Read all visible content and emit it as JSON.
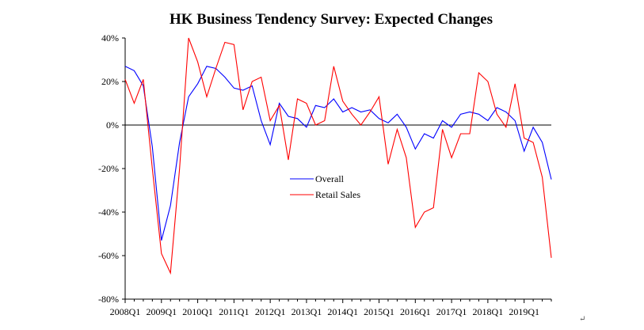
{
  "chart_data": {
    "type": "line",
    "title": "HK Business Tendency Survey: Expected Changes",
    "xlabel": "",
    "ylabel": "",
    "ylim": [
      -80,
      40
    ],
    "yticks": [
      "40%",
      "20%",
      "0%",
      "-20%",
      "-40%",
      "-60%",
      "-80%"
    ],
    "ytick_values": [
      40,
      20,
      0,
      -20,
      -40,
      -60,
      -80
    ],
    "xtick_labels": [
      "2008Q1",
      "2009Q1",
      "2010Q1",
      "2011Q1",
      "2012Q1",
      "2013Q1",
      "2014Q1",
      "2015Q1",
      "2016Q1",
      "2017Q1",
      "2018Q1",
      "2019Q1"
    ],
    "x": [
      "2008Q1",
      "2008Q2",
      "2008Q3",
      "2008Q4",
      "2009Q1",
      "2009Q2",
      "2009Q3",
      "2009Q4",
      "2010Q1",
      "2010Q2",
      "2010Q3",
      "2010Q4",
      "2011Q1",
      "2011Q2",
      "2011Q3",
      "2011Q4",
      "2012Q1",
      "2012Q2",
      "2012Q3",
      "2012Q4",
      "2013Q1",
      "2013Q2",
      "2013Q3",
      "2013Q4",
      "2014Q1",
      "2014Q2",
      "2014Q3",
      "2014Q4",
      "2015Q1",
      "2015Q2",
      "2015Q3",
      "2015Q4",
      "2016Q1",
      "2016Q2",
      "2016Q3",
      "2016Q4",
      "2017Q1",
      "2017Q2",
      "2017Q3",
      "2017Q4",
      "2018Q1",
      "2018Q2",
      "2018Q3",
      "2018Q4",
      "2019Q1",
      "2019Q2",
      "2019Q3",
      "2019Q4"
    ],
    "grid": false,
    "zero_line": true,
    "legend_position": "center",
    "series": [
      {
        "name": "Overall",
        "color": "#0000ff",
        "values": [
          27,
          25,
          18,
          -10,
          -53,
          -37,
          -8,
          13,
          19,
          27,
          26,
          22,
          17,
          16,
          18,
          2,
          -9,
          10,
          4,
          3,
          -1,
          9,
          8,
          12,
          6,
          8,
          6,
          7,
          3,
          1,
          5,
          -1,
          -11,
          -4,
          -6,
          2,
          -1,
          5,
          6,
          5,
          2,
          8,
          6,
          2,
          -12,
          -1,
          -8,
          -25
        ]
      },
      {
        "name": "Retail Sales",
        "color": "#ff0000",
        "values": [
          21,
          10,
          21,
          -20,
          -59,
          -68,
          -20,
          40,
          29,
          13,
          26,
          38,
          37,
          7,
          20,
          22,
          2,
          9,
          -16,
          12,
          10,
          0,
          2,
          27,
          11,
          5,
          0,
          6,
          13,
          -18,
          -2,
          -15,
          -47,
          -40,
          -38,
          -2,
          -15,
          -4,
          -4,
          24,
          20,
          5,
          -1,
          19,
          -6,
          -8,
          -24,
          -61
        ]
      }
    ]
  },
  "page": {
    "return_mark": "↵"
  }
}
